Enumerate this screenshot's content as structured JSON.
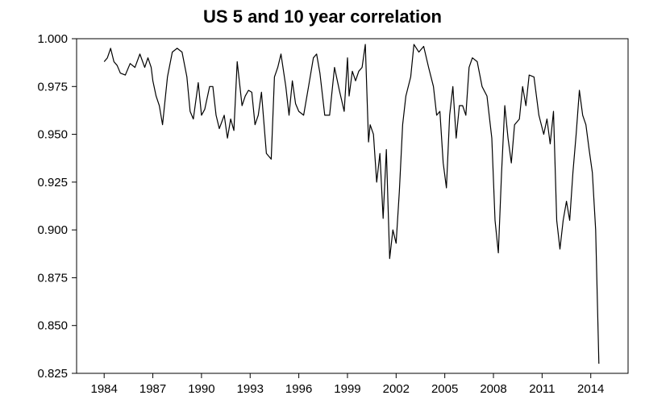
{
  "chart_data": {
    "type": "line",
    "title": "US 5 and 10 year correlation",
    "xlabel": "",
    "ylabel": "",
    "xlim": [
      1982.3,
      2016.3
    ],
    "ylim": [
      0.825,
      1.0
    ],
    "x_ticks": [
      "1984",
      "1987",
      "1990",
      "1993",
      "1996",
      "1999",
      "2002",
      "2005",
      "2008",
      "2011",
      "2014"
    ],
    "y_ticks": [
      "0.825",
      "0.850",
      "0.875",
      "0.900",
      "0.925",
      "0.950",
      "0.975",
      "1.000"
    ],
    "grid": false,
    "legend": "none",
    "line_color": "#000000",
    "series": [
      {
        "x": [
          1984.0,
          1984.2,
          1984.4,
          1984.6,
          1984.8,
          1985.0,
          1985.3,
          1985.6,
          1985.9,
          1986.2,
          1986.5,
          1986.7,
          1986.9,
          1987.0,
          1987.2,
          1987.4,
          1987.6,
          1987.9,
          1988.2,
          1988.5,
          1988.8,
          1989.1,
          1989.3,
          1989.5,
          1989.8,
          1990.0,
          1990.2,
          1990.5,
          1990.7,
          1990.9,
          1991.1,
          1991.4,
          1991.6,
          1991.8,
          1992.0,
          1992.2,
          1992.5,
          1992.7,
          1992.9,
          1993.1,
          1993.3,
          1993.5,
          1993.7,
          1994.0,
          1994.3,
          1994.5,
          1994.7,
          1994.9,
          1995.2,
          1995.4,
          1995.6,
          1995.8,
          1996.0,
          1996.3,
          1996.6,
          1996.9,
          1997.1,
          1997.3,
          1997.6,
          1997.9,
          1998.2,
          1998.5,
          1998.8,
          1999.0,
          1999.1,
          1999.3,
          1999.5,
          1999.7,
          1999.9,
          2000.1,
          2000.3,
          2000.4,
          2000.6,
          2000.8,
          2001.0,
          2001.2,
          2001.4,
          2001.6,
          2001.8,
          2002.0,
          2002.2,
          2002.4,
          2002.6,
          2002.9,
          2003.1,
          2003.4,
          2003.7,
          2004.0,
          2004.3,
          2004.5,
          2004.7,
          2004.9,
          2005.1,
          2005.3,
          2005.5,
          2005.7,
          2005.9,
          2006.1,
          2006.3,
          2006.5,
          2006.7,
          2007.0,
          2007.3,
          2007.6,
          2007.9,
          2008.1,
          2008.3,
          2008.5,
          2008.7,
          2008.9,
          2009.1,
          2009.3,
          2009.6,
          2009.8,
          2010.0,
          2010.2,
          2010.5,
          2010.8,
          2011.1,
          2011.3,
          2011.5,
          2011.7,
          2011.9,
          2012.1,
          2012.3,
          2012.5,
          2012.7,
          2012.9,
          2013.1,
          2013.3,
          2013.5,
          2013.7,
          2013.9,
          2014.1,
          2014.3,
          2014.5
        ],
        "values": [
          0.988,
          0.99,
          0.995,
          0.988,
          0.986,
          0.982,
          0.981,
          0.987,
          0.985,
          0.992,
          0.985,
          0.99,
          0.985,
          0.978,
          0.97,
          0.965,
          0.955,
          0.98,
          0.993,
          0.995,
          0.993,
          0.98,
          0.962,
          0.958,
          0.977,
          0.96,
          0.963,
          0.975,
          0.975,
          0.96,
          0.953,
          0.96,
          0.948,
          0.958,
          0.952,
          0.988,
          0.965,
          0.97,
          0.973,
          0.972,
          0.955,
          0.96,
          0.972,
          0.94,
          0.937,
          0.98,
          0.985,
          0.992,
          0.975,
          0.96,
          0.978,
          0.966,
          0.962,
          0.96,
          0.975,
          0.99,
          0.992,
          0.982,
          0.96,
          0.96,
          0.985,
          0.973,
          0.962,
          0.99,
          0.97,
          0.983,
          0.978,
          0.983,
          0.985,
          0.997,
          0.946,
          0.955,
          0.95,
          0.925,
          0.94,
          0.906,
          0.942,
          0.885,
          0.9,
          0.893,
          0.92,
          0.955,
          0.97,
          0.98,
          0.997,
          0.993,
          0.996,
          0.985,
          0.975,
          0.96,
          0.962,
          0.935,
          0.922,
          0.96,
          0.975,
          0.948,
          0.965,
          0.965,
          0.96,
          0.985,
          0.99,
          0.988,
          0.975,
          0.97,
          0.948,
          0.905,
          0.888,
          0.93,
          0.965,
          0.948,
          0.935,
          0.955,
          0.958,
          0.975,
          0.965,
          0.981,
          0.98,
          0.96,
          0.95,
          0.958,
          0.945,
          0.962,
          0.905,
          0.89,
          0.905,
          0.915,
          0.905,
          0.93,
          0.95,
          0.973,
          0.96,
          0.955,
          0.942,
          0.93,
          0.9,
          0.83
        ]
      }
    ]
  }
}
